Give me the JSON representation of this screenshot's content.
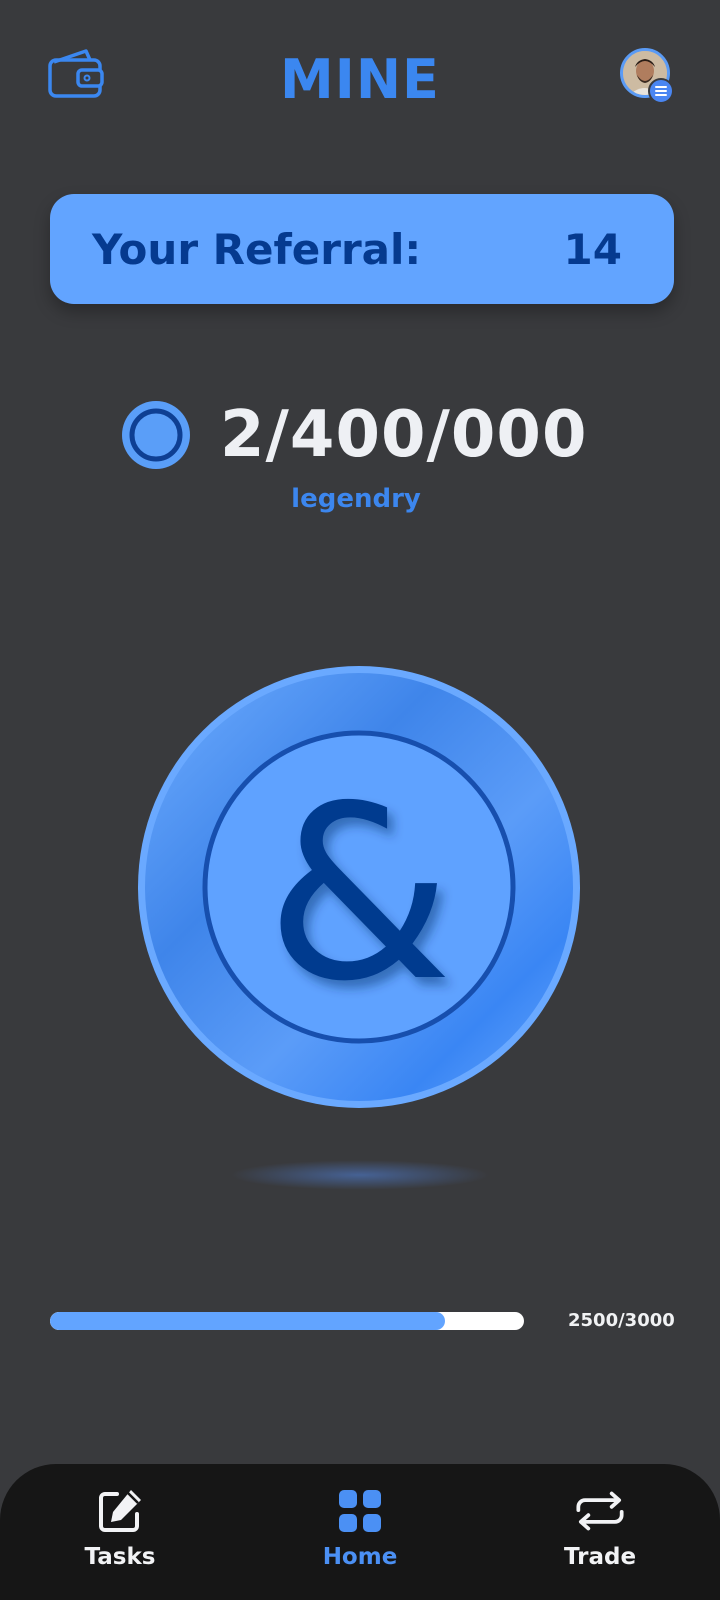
{
  "header": {
    "title": "MINE",
    "wallet_icon": "wallet-icon",
    "avatar_icon": "user-avatar",
    "menu_badge_icon": "menu-icon"
  },
  "referral": {
    "label": "Your Referral:",
    "count": "14"
  },
  "balance": {
    "value": "2/400/000",
    "rank": "legendry",
    "icon": "coin-icon"
  },
  "coin": {
    "symbol": "&"
  },
  "progress": {
    "text": "2500/3000",
    "current": 2500,
    "max": 3000
  },
  "nav": {
    "items": [
      {
        "label": "Tasks",
        "icon": "edit-icon",
        "active": false
      },
      {
        "label": "Home",
        "icon": "grid-icon",
        "active": true
      },
      {
        "label": "Trade",
        "icon": "swap-icon",
        "active": false
      }
    ]
  },
  "colors": {
    "background": "#393a3d",
    "accent": "#3b87f0",
    "card": "#62a4ff",
    "card_text": "#053a8f",
    "nav_bg": "#161616"
  }
}
